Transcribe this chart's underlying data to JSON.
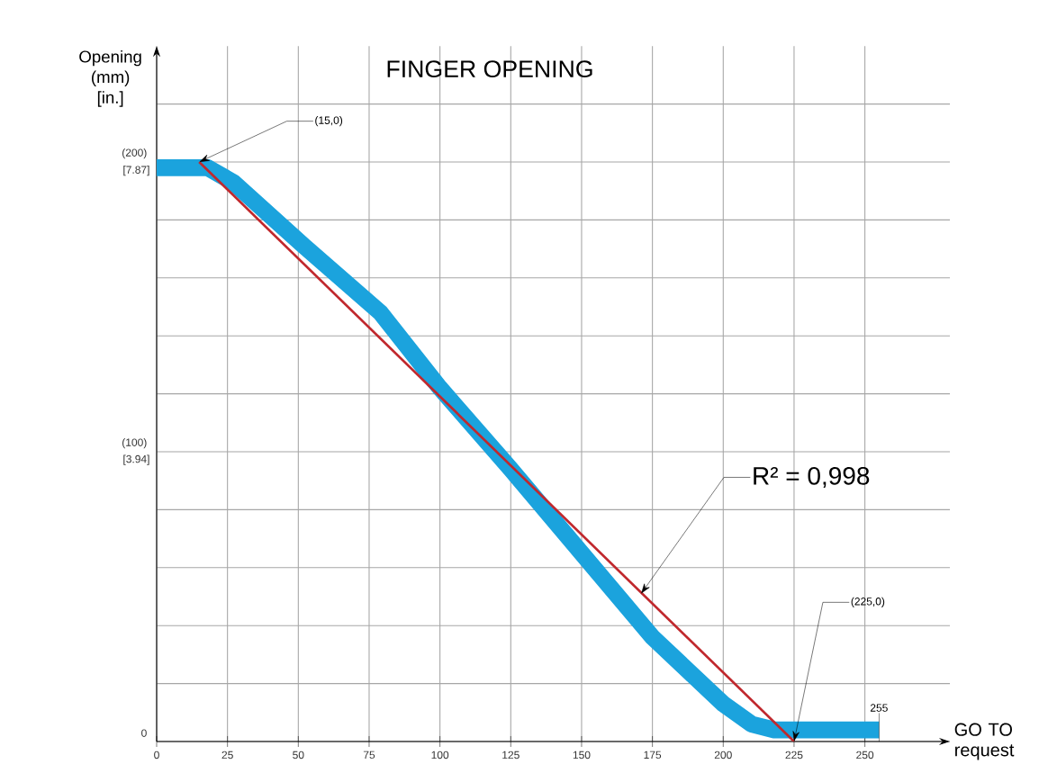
{
  "chart_data": {
    "type": "line",
    "title": "FINGER OPENING",
    "xlabel": "GO TO request",
    "ylabel": "Opening (mm) [in.]",
    "series": [
      {
        "color": "#1ba3dd",
        "x": [
          0,
          18,
          27,
          52,
          79,
          100,
          125,
          150,
          175,
          200,
          210,
          218,
          255
        ],
        "values": [
          198,
          198,
          193,
          171,
          148,
          122,
          94,
          65,
          36,
          13,
          6,
          4,
          4
        ]
      },
      {
        "color": "#c0282d",
        "x": [
          15,
          225
        ],
        "values": [
          200,
          0
        ]
      }
    ],
    "xlim": [
      0,
      280
    ],
    "ylim": [
      0,
      240
    ],
    "xticks": [
      0,
      25,
      50,
      75,
      100,
      125,
      150,
      175,
      200,
      225,
      250
    ],
    "yticks": [
      0,
      {
        "value": 20,
        "label": null
      },
      {
        "value": 40,
        "label": null
      },
      {
        "value": 60,
        "label": null
      },
      {
        "value": 80,
        "label": null
      },
      {
        "value": 100,
        "label": "(100)"
      },
      {
        "value": 120,
        "label": null
      },
      {
        "value": 140,
        "label": null
      },
      {
        "value": 160,
        "label": null
      },
      {
        "value": 180,
        "label": null
      },
      {
        "value": 200,
        "label": "(200)"
      },
      {
        "value": 220,
        "label": null
      }
    ],
    "y2lim": [
      0,
      9.449
    ],
    "y2ticks": [
      {
        "value": 3.94,
        "label": "[3.94]"
      },
      {
        "value": 7.87,
        "label": "[7.87]"
      }
    ],
    "annotations": [
      {
        "text": "(15,0)",
        "x": 15,
        "y": 200
      },
      {
        "text": "R² = 0,998",
        "x": 171,
        "y": 51
      },
      {
        "text": "(225,0)",
        "x": 225,
        "y": 0
      },
      "255"
    ],
    "grid": true,
    "marker": "none",
    "line_style": "solid"
  }
}
